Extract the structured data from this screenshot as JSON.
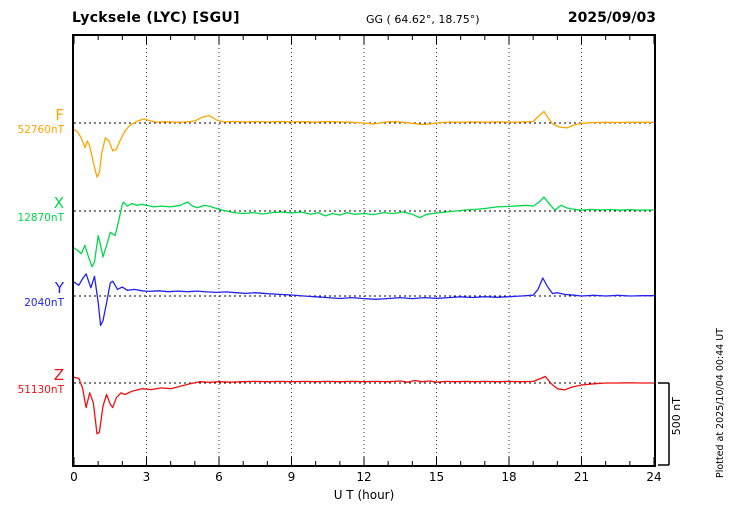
{
  "header": {
    "station": "Lycksele (LYC)  [SGU]",
    "coords": "GG ( 64.62°,  18.75°)",
    "date": "2025/09/03"
  },
  "axis": {
    "xlabel": "U T (hour)"
  },
  "scalebar": {
    "label": "500 nT",
    "nT": 500
  },
  "footer_right": "Plotted at 2025/10/04 00:44 UT",
  "chart_data": {
    "type": "line",
    "title": "Lycksele (LYC) [SGU] magnetogram 2025/09/03",
    "xlabel": "U T (hour)",
    "xlim": [
      0,
      24
    ],
    "x_ticks": [
      0,
      3,
      6,
      9,
      12,
      15,
      18,
      21,
      24
    ],
    "grid": "dotted vertical lines at 3-hour ticks; dotted horizontal baseline per component",
    "scale_bar_nT": 500,
    "legend_position": "left margin, one colored label per trace",
    "series": [
      {
        "name": "F",
        "baseline_label": "52760nT",
        "baseline_nT": 52760,
        "color": "#FFA500",
        "points": [
          [
            0,
            -40
          ],
          [
            0.15,
            -55
          ],
          [
            0.3,
            -90
          ],
          [
            0.45,
            -150
          ],
          [
            0.55,
            -110
          ],
          [
            0.65,
            -140
          ],
          [
            0.8,
            -240
          ],
          [
            0.95,
            -330
          ],
          [
            1.05,
            -300
          ],
          [
            1.15,
            -180
          ],
          [
            1.3,
            -90
          ],
          [
            1.45,
            -110
          ],
          [
            1.6,
            -170
          ],
          [
            1.75,
            -160
          ],
          [
            1.9,
            -110
          ],
          [
            2.1,
            -50
          ],
          [
            2.3,
            -15
          ],
          [
            2.6,
            10
          ],
          [
            2.9,
            25
          ],
          [
            3.1,
            15
          ],
          [
            3.4,
            5
          ],
          [
            3.8,
            8
          ],
          [
            4.2,
            4
          ],
          [
            4.6,
            6
          ],
          [
            5.0,
            12
          ],
          [
            5.3,
            35
          ],
          [
            5.6,
            45
          ],
          [
            5.9,
            18
          ],
          [
            6.2,
            6
          ],
          [
            6.6,
            10
          ],
          [
            7.0,
            6
          ],
          [
            7.5,
            9
          ],
          [
            8.0,
            6
          ],
          [
            8.5,
            9
          ],
          [
            9.0,
            6
          ],
          [
            9.5,
            8
          ],
          [
            10.0,
            5
          ],
          [
            10.5,
            9
          ],
          [
            11.0,
            6
          ],
          [
            11.5,
            4
          ],
          [
            12.0,
            0
          ],
          [
            12.4,
            -6
          ],
          [
            12.8,
            4
          ],
          [
            13.2,
            9
          ],
          [
            13.6,
            4
          ],
          [
            14.0,
            -2
          ],
          [
            14.4,
            -10
          ],
          [
            14.8,
            -4
          ],
          [
            15.2,
            3
          ],
          [
            15.6,
            6
          ],
          [
            16.0,
            4
          ],
          [
            16.5,
            7
          ],
          [
            17.0,
            5
          ],
          [
            17.5,
            7
          ],
          [
            18.0,
            5
          ],
          [
            18.5,
            6
          ],
          [
            19.0,
            9
          ],
          [
            19.25,
            45
          ],
          [
            19.45,
            70
          ],
          [
            19.6,
            35
          ],
          [
            19.8,
            -5
          ],
          [
            20.1,
            -25
          ],
          [
            20.4,
            -30
          ],
          [
            20.7,
            -12
          ],
          [
            21.0,
            -2
          ],
          [
            21.5,
            3
          ],
          [
            22.0,
            4
          ],
          [
            22.5,
            3
          ],
          [
            23.0,
            4
          ],
          [
            23.5,
            4
          ],
          [
            24,
            4
          ]
        ]
      },
      {
        "name": "X",
        "baseline_label": "12870nT",
        "baseline_nT": 12870,
        "color": "#00D84A",
        "points": [
          [
            0,
            -225
          ],
          [
            0.15,
            -240
          ],
          [
            0.3,
            -260
          ],
          [
            0.45,
            -210
          ],
          [
            0.6,
            -280
          ],
          [
            0.75,
            -340
          ],
          [
            0.85,
            -310
          ],
          [
            1.0,
            -150
          ],
          [
            1.1,
            -210
          ],
          [
            1.2,
            -280
          ],
          [
            1.35,
            -210
          ],
          [
            1.5,
            -130
          ],
          [
            1.7,
            -150
          ],
          [
            1.85,
            -60
          ],
          [
            2.0,
            40
          ],
          [
            2.05,
            55
          ],
          [
            2.2,
            30
          ],
          [
            2.4,
            45
          ],
          [
            2.6,
            35
          ],
          [
            2.8,
            40
          ],
          [
            3.0,
            35
          ],
          [
            3.3,
            25
          ],
          [
            3.6,
            30
          ],
          [
            4.0,
            25
          ],
          [
            4.4,
            35
          ],
          [
            4.7,
            55
          ],
          [
            4.9,
            30
          ],
          [
            5.1,
            20
          ],
          [
            5.4,
            35
          ],
          [
            5.7,
            25
          ],
          [
            6.0,
            10
          ],
          [
            6.3,
            0
          ],
          [
            6.6,
            -10
          ],
          [
            7.0,
            -15
          ],
          [
            7.4,
            -10
          ],
          [
            7.8,
            -18
          ],
          [
            8.2,
            -10
          ],
          [
            8.6,
            -6
          ],
          [
            9.0,
            -12
          ],
          [
            9.4,
            -6
          ],
          [
            9.8,
            -20
          ],
          [
            10.1,
            -10
          ],
          [
            10.4,
            -30
          ],
          [
            10.7,
            -15
          ],
          [
            11.0,
            -25
          ],
          [
            11.3,
            -10
          ],
          [
            11.6,
            -20
          ],
          [
            12.0,
            -15
          ],
          [
            12.4,
            -22
          ],
          [
            12.8,
            -10
          ],
          [
            13.2,
            -16
          ],
          [
            13.6,
            -6
          ],
          [
            14.0,
            -20
          ],
          [
            14.3,
            -40
          ],
          [
            14.6,
            -20
          ],
          [
            15.0,
            -12
          ],
          [
            15.4,
            -6
          ],
          [
            15.8,
            0
          ],
          [
            16.2,
            6
          ],
          [
            16.6,
            10
          ],
          [
            17.0,
            15
          ],
          [
            17.5,
            25
          ],
          [
            18.0,
            28
          ],
          [
            18.4,
            32
          ],
          [
            18.7,
            35
          ],
          [
            19.0,
            30
          ],
          [
            19.25,
            55
          ],
          [
            19.45,
            85
          ],
          [
            19.65,
            45
          ],
          [
            19.9,
            5
          ],
          [
            20.15,
            35
          ],
          [
            20.4,
            18
          ],
          [
            20.7,
            10
          ],
          [
            21.0,
            5
          ],
          [
            21.4,
            10
          ],
          [
            21.8,
            6
          ],
          [
            22.2,
            9
          ],
          [
            22.6,
            5
          ],
          [
            23.0,
            8
          ],
          [
            23.4,
            5
          ],
          [
            23.8,
            6
          ],
          [
            24,
            6
          ]
        ]
      },
      {
        "name": "Y",
        "baseline_label": "2040nT",
        "baseline_nT": 2040,
        "color": "#2222EE",
        "points": [
          [
            0,
            85
          ],
          [
            0.2,
            65
          ],
          [
            0.35,
            105
          ],
          [
            0.5,
            135
          ],
          [
            0.7,
            50
          ],
          [
            0.85,
            120
          ],
          [
            1.0,
            -40
          ],
          [
            1.1,
            -180
          ],
          [
            1.2,
            -150
          ],
          [
            1.35,
            -40
          ],
          [
            1.5,
            80
          ],
          [
            1.6,
            90
          ],
          [
            1.8,
            40
          ],
          [
            2.0,
            55
          ],
          [
            2.2,
            35
          ],
          [
            2.5,
            40
          ],
          [
            2.8,
            32
          ],
          [
            3.1,
            28
          ],
          [
            3.5,
            32
          ],
          [
            3.9,
            26
          ],
          [
            4.3,
            30
          ],
          [
            4.7,
            26
          ],
          [
            5.1,
            30
          ],
          [
            5.5,
            25
          ],
          [
            5.9,
            22
          ],
          [
            6.3,
            25
          ],
          [
            6.7,
            20
          ],
          [
            7.1,
            16
          ],
          [
            7.5,
            20
          ],
          [
            8.0,
            14
          ],
          [
            8.5,
            10
          ],
          [
            9.0,
            6
          ],
          [
            9.5,
            0
          ],
          [
            10.0,
            -5
          ],
          [
            10.5,
            -10
          ],
          [
            11.0,
            -15
          ],
          [
            11.5,
            -10
          ],
          [
            12.0,
            -16
          ],
          [
            12.5,
            -20
          ],
          [
            13.0,
            -15
          ],
          [
            13.5,
            -10
          ],
          [
            14.0,
            -16
          ],
          [
            14.5,
            -10
          ],
          [
            15.0,
            -14
          ],
          [
            15.5,
            -10
          ],
          [
            16.0,
            -5
          ],
          [
            16.5,
            -9
          ],
          [
            17.0,
            -4
          ],
          [
            17.5,
            -8
          ],
          [
            18.0,
            -4
          ],
          [
            18.5,
            0
          ],
          [
            19.0,
            5
          ],
          [
            19.2,
            40
          ],
          [
            19.4,
            110
          ],
          [
            19.6,
            55
          ],
          [
            19.8,
            15
          ],
          [
            20.0,
            20
          ],
          [
            20.3,
            10
          ],
          [
            20.7,
            5
          ],
          [
            21.0,
            0
          ],
          [
            21.5,
            4
          ],
          [
            22.0,
            0
          ],
          [
            22.5,
            4
          ],
          [
            23.0,
            0
          ],
          [
            23.5,
            2
          ],
          [
            24,
            2
          ]
        ]
      },
      {
        "name": "Z",
        "baseline_label": "51130nT",
        "baseline_nT": 51130,
        "color": "#EE1111",
        "points": [
          [
            0,
            35
          ],
          [
            0.2,
            28
          ],
          [
            0.35,
            -30
          ],
          [
            0.5,
            -150
          ],
          [
            0.65,
            -60
          ],
          [
            0.8,
            -120
          ],
          [
            0.95,
            -310
          ],
          [
            1.05,
            -300
          ],
          [
            1.2,
            -140
          ],
          [
            1.35,
            -70
          ],
          [
            1.5,
            -130
          ],
          [
            1.6,
            -150
          ],
          [
            1.75,
            -90
          ],
          [
            1.95,
            -60
          ],
          [
            2.1,
            -70
          ],
          [
            2.4,
            -50
          ],
          [
            2.8,
            -35
          ],
          [
            3.2,
            -40
          ],
          [
            3.6,
            -30
          ],
          [
            4.0,
            -35
          ],
          [
            4.4,
            -20
          ],
          [
            4.8,
            -5
          ],
          [
            5.2,
            8
          ],
          [
            5.6,
            4
          ],
          [
            6.0,
            8
          ],
          [
            6.5,
            5
          ],
          [
            7.0,
            8
          ],
          [
            7.5,
            10
          ],
          [
            8.0,
            8
          ],
          [
            8.5,
            10
          ],
          [
            9.0,
            8
          ],
          [
            9.5,
            10
          ],
          [
            10.0,
            8
          ],
          [
            10.5,
            10
          ],
          [
            11.0,
            8
          ],
          [
            11.5,
            10
          ],
          [
            12.0,
            8
          ],
          [
            12.5,
            10
          ],
          [
            13.0,
            8
          ],
          [
            13.5,
            12
          ],
          [
            13.8,
            5
          ],
          [
            14.1,
            15
          ],
          [
            14.4,
            8
          ],
          [
            14.7,
            12
          ],
          [
            15.0,
            5
          ],
          [
            15.4,
            10
          ],
          [
            15.8,
            8
          ],
          [
            16.2,
            10
          ],
          [
            16.6,
            8
          ],
          [
            17.0,
            10
          ],
          [
            17.5,
            8
          ],
          [
            18.0,
            10
          ],
          [
            18.5,
            8
          ],
          [
            19.0,
            10
          ],
          [
            19.35,
            30
          ],
          [
            19.5,
            40
          ],
          [
            19.75,
            -5
          ],
          [
            20.0,
            -35
          ],
          [
            20.3,
            -42
          ],
          [
            20.6,
            -25
          ],
          [
            21.0,
            -12
          ],
          [
            21.5,
            -5
          ],
          [
            22.0,
            0
          ],
          [
            22.5,
            0
          ],
          [
            23.0,
            1
          ],
          [
            23.5,
            0
          ],
          [
            24,
            0
          ]
        ]
      }
    ]
  }
}
